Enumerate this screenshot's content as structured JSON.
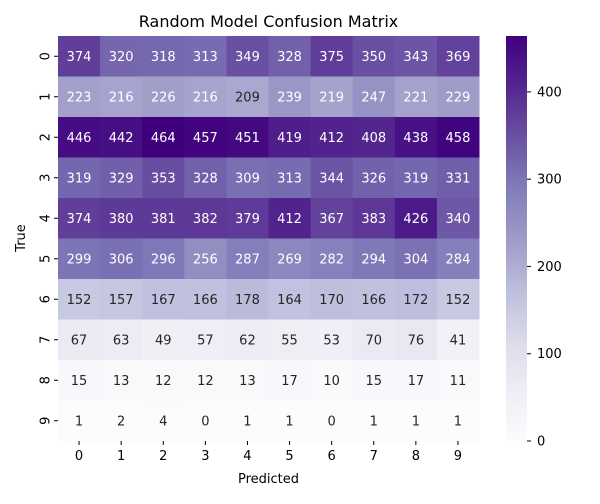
{
  "chart_data": {
    "type": "heatmap",
    "title": "Random Model Confusion Matrix",
    "xlabel": "Predicted",
    "ylabel": "True",
    "x_categories": [
      "0",
      "1",
      "2",
      "3",
      "4",
      "5",
      "6",
      "7",
      "8",
      "9"
    ],
    "y_categories": [
      "0",
      "1",
      "2",
      "3",
      "4",
      "5",
      "6",
      "7",
      "8",
      "9"
    ],
    "values": [
      [
        374,
        320,
        318,
        313,
        349,
        328,
        375,
        350,
        343,
        369
      ],
      [
        223,
        216,
        226,
        216,
        209,
        239,
        219,
        247,
        221,
        229
      ],
      [
        446,
        442,
        464,
        457,
        451,
        419,
        412,
        408,
        438,
        458
      ],
      [
        319,
        329,
        353,
        328,
        309,
        313,
        344,
        326,
        319,
        331
      ],
      [
        374,
        380,
        381,
        382,
        379,
        412,
        367,
        383,
        426,
        340
      ],
      [
        299,
        306,
        296,
        256,
        287,
        269,
        282,
        294,
        304,
        284
      ],
      [
        152,
        157,
        167,
        166,
        178,
        164,
        170,
        166,
        172,
        152
      ],
      [
        67,
        63,
        49,
        57,
        62,
        55,
        53,
        70,
        76,
        41
      ],
      [
        15,
        13,
        12,
        12,
        13,
        17,
        10,
        15,
        17,
        11
      ],
      [
        1,
        2,
        4,
        0,
        1,
        1,
        0,
        1,
        1,
        1
      ]
    ],
    "colorbar": {
      "range": [
        0,
        464
      ],
      "ticks": [
        0,
        100,
        200,
        300,
        400
      ],
      "colormap": "Purples",
      "stops": [
        "#fcfbfd",
        "#efedf5",
        "#dadaeb",
        "#bcbddc",
        "#9e9ac8",
        "#807dba",
        "#6a51a3",
        "#54278f",
        "#3f007d"
      ]
    },
    "annotation_colors": {
      "light_text": "#ffffff",
      "dark_text": "#262626"
    },
    "grid": false
  }
}
